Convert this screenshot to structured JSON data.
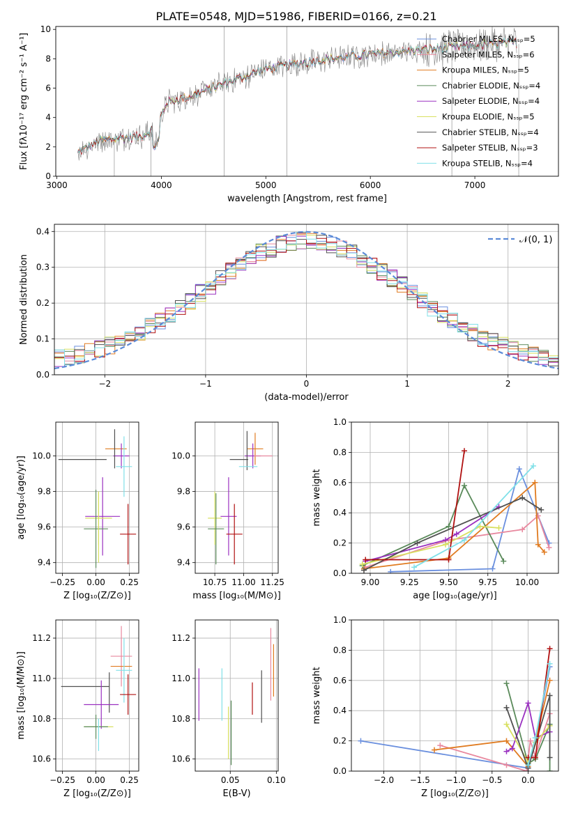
{
  "figure_title": "PLATE=0548, MJD=51986, FIBERID=0166, z=0.21",
  "colors": {
    "chabrier_miles": "#6a8fde",
    "salpeter_miles": "#e8889e",
    "kroupa_miles": "#e07b20",
    "chabrier_elodie": "#5a8a5a",
    "salpeter_elodie": "#9a30c0",
    "kroupa_elodie": "#d8e060",
    "chabrier_stelib": "#505050",
    "salpeter_stelib": "#b01010",
    "kroupa_stelib": "#80e0e8",
    "observed": "#808080",
    "normal": "#5b8bd8"
  },
  "chart_data": [
    {
      "id": "spectrum",
      "type": "line",
      "xlabel": "wavelength [Angstrom, rest frame]",
      "ylabel": "Flux [fλ10⁻¹⁷ erg cm⁻² s⁻¹ A⁻¹]",
      "xlim": [
        2990,
        7800
      ],
      "ylim": [
        0,
        10.2
      ],
      "xticks": [
        3000,
        4000,
        5000,
        6000,
        7000
      ],
      "yticks": [
        0,
        2,
        4,
        6,
        8,
        10
      ],
      "grid": false,
      "legend_position": "top-right",
      "legend": [
        {
          "label": "Chabrier MILES, Nₛₛₚ=5",
          "color_key": "chabrier_miles"
        },
        {
          "label": "Salpeter MILES, Nₛₛₚ=6",
          "color_key": "salpeter_miles"
        },
        {
          "label": "Kroupa MILES, Nₛₛₚ=5",
          "color_key": "kroupa_miles"
        },
        {
          "label": "Chabrier ELODIE, Nₛₛₚ=4",
          "color_key": "chabrier_elodie"
        },
        {
          "label": "Salpeter ELODIE, Nₛₛₚ=4",
          "color_key": "salpeter_elodie"
        },
        {
          "label": "Kroupa ELODIE, Nₛₛₚ=5",
          "color_key": "kroupa_elodie"
        },
        {
          "label": "Chabrier STELIB, Nₛₛₚ=4",
          "color_key": "chabrier_stelib"
        },
        {
          "label": "Salpeter STELIB, Nₛₛₚ=3",
          "color_key": "salpeter_stelib"
        },
        {
          "label": "Kroupa STELIB, Nₛₛₚ=4",
          "color_key": "kroupa_stelib"
        }
      ],
      "continuum": [
        [
          3200,
          1.6
        ],
        [
          3400,
          2.4
        ],
        [
          3600,
          2.6
        ],
        [
          3800,
          2.7
        ],
        [
          3950,
          3.3
        ],
        [
          4050,
          5.0
        ],
        [
          4300,
          5.5
        ],
        [
          4600,
          6.3
        ],
        [
          5000,
          7.3
        ],
        [
          5500,
          7.9
        ],
        [
          6000,
          8.3
        ],
        [
          6500,
          8.6
        ],
        [
          7000,
          8.9
        ],
        [
          7400,
          9.1
        ]
      ],
      "start_wavelength": 3200,
      "end_wavelength": 7400
    },
    {
      "id": "residuals",
      "type": "histogram",
      "xlabel": "(data-model)/error",
      "ylabel": "Normed distribution",
      "xlim": [
        -2.5,
        2.5
      ],
      "ylim": [
        0,
        0.42
      ],
      "xticks": [
        -2,
        -1,
        0,
        1,
        2
      ],
      "yticks": [
        0.0,
        0.1,
        0.2,
        0.3,
        0.4
      ],
      "grid": true,
      "legend_position": "top-right",
      "legend": [
        {
          "label": "𝒩(0, 1)",
          "color_key": "normal",
          "style": "dashed"
        }
      ],
      "bin_width": 0.1
    },
    {
      "id": "age_vs_Z",
      "type": "errorbar",
      "xlabel": "Z [log₁₀(Z/Z⊙)]",
      "ylabel": "age  [log₁₀(age/yr)]",
      "xlim": [
        -0.3,
        0.32
      ],
      "ylim": [
        9.34,
        10.19
      ],
      "xticks": [
        -0.25,
        0.0,
        0.25
      ],
      "xtick_labels": [
        "−0.25",
        "0.00",
        "0.25"
      ],
      "yticks": [
        9.4,
        9.6,
        9.8,
        10.0
      ],
      "yticks_labels": [
        "9.4",
        "9.6",
        "9.8",
        "10.0"
      ],
      "grid": true,
      "points": [
        {
          "c": "chabrier_stelib",
          "x": -0.1,
          "xerr": 0.18,
          "y": 9.98,
          "yerr": 0.0
        },
        {
          "c": "kroupa_miles",
          "x": 0.15,
          "xerr": 0.08,
          "y": 10.04,
          "yerr": 0.0
        },
        {
          "c": "salpeter_elodie",
          "x": 0.19,
          "xerr": 0.06,
          "y": 10.0,
          "yerr": 0.07
        },
        {
          "c": "chabrier_stelib",
          "x": 0.14,
          "xerr": 0.0,
          "y": 10.04,
          "yerr": 0.11
        },
        {
          "c": "kroupa_stelib",
          "x": 0.21,
          "xerr": 0.06,
          "y": 9.94,
          "yerr": 0.17
        },
        {
          "c": "salpeter_elodie",
          "x": 0.05,
          "xerr": 0.13,
          "y": 9.66,
          "yerr": 0.22
        },
        {
          "c": "kroupa_elodie",
          "x": 0.02,
          "xerr": 0.1,
          "y": 9.65,
          "yerr": 0.15
        },
        {
          "c": "chabrier_elodie",
          "x": 0.0,
          "xerr": 0.09,
          "y": 9.59,
          "yerr": 0.22
        },
        {
          "c": "kroupa_elodie",
          "x": 0.02,
          "xerr": 0.0,
          "y": 9.6,
          "yerr": 0.2
        },
        {
          "c": "salpeter_stelib",
          "x": 0.24,
          "xerr": 0.06,
          "y": 9.56,
          "yerr": 0.17
        }
      ]
    },
    {
      "id": "age_vs_mass",
      "type": "errorbar",
      "xlabel": "mass [log₁₀(M/M⊙)]",
      "ylabel": "",
      "xlim": [
        10.58,
        11.3
      ],
      "ylim": [
        9.34,
        10.19
      ],
      "xticks": [
        10.75,
        11.0,
        11.25
      ],
      "xtick_labels": [
        "10.75",
        "11.00",
        "11.25"
      ],
      "yticks": [
        9.4,
        9.6,
        9.8,
        10.0
      ],
      "yticks_labels": [
        "9.4",
        "9.6",
        "9.8",
        "10.0"
      ],
      "grid": true,
      "points": [
        {
          "c": "chabrier_stelib",
          "x": 10.96,
          "xerr": 0.08,
          "y": 9.98,
          "yerr": 0.0
        },
        {
          "c": "kroupa_miles",
          "x": 11.1,
          "xerr": 0.07,
          "y": 10.04,
          "yerr": 0.09
        },
        {
          "c": "salpeter_elodie",
          "x": 11.08,
          "xerr": 0.07,
          "y": 10.0,
          "yerr": 0.07
        },
        {
          "c": "chabrier_stelib",
          "x": 11.03,
          "xerr": 0.0,
          "y": 10.03,
          "yerr": 0.11
        },
        {
          "c": "kroupa_stelib",
          "x": 11.04,
          "xerr": 0.08,
          "y": 9.94,
          "yerr": 0.0
        },
        {
          "c": "salpeter_miles",
          "x": 11.17,
          "xerr": 0.08,
          "y": 10.0,
          "yerr": 0.0
        },
        {
          "c": "salpeter_elodie",
          "x": 10.87,
          "xerr": 0.07,
          "y": 9.66,
          "yerr": 0.22
        },
        {
          "c": "kroupa_elodie",
          "x": 10.75,
          "xerr": 0.06,
          "y": 9.65,
          "yerr": 0.15
        },
        {
          "c": "chabrier_elodie",
          "x": 10.76,
          "xerr": 0.07,
          "y": 9.59,
          "yerr": 0.2
        },
        {
          "c": "salpeter_stelib",
          "x": 10.92,
          "xerr": 0.07,
          "y": 9.56,
          "yerr": 0.17
        }
      ]
    },
    {
      "id": "weight_vs_age",
      "type": "line",
      "xlabel": "age  [log₁₀(age/yr)]",
      "ylabel": "mass weight",
      "xlim": [
        8.88,
        10.2
      ],
      "ylim": [
        0,
        1.0
      ],
      "xticks": [
        9.0,
        9.25,
        9.5,
        9.75,
        10.0
      ],
      "xtick_labels": [
        "9.00",
        "9.25",
        "9.50",
        "9.75",
        "10.00"
      ],
      "yticks": [
        0.0,
        0.2,
        0.4,
        0.6,
        0.8,
        1.0
      ],
      "yticks_labels": [
        "0.0",
        "0.2",
        "0.4",
        "0.6",
        "0.8",
        "1.0"
      ],
      "grid": true,
      "series": [
        {
          "c": "chabrier_miles",
          "x": [
            9.13,
            9.78,
            9.95,
            10.14
          ],
          "y": [
            0.01,
            0.03,
            0.69,
            0.2
          ]
        },
        {
          "c": "salpeter_miles",
          "x": [
            8.97,
            9.5,
            9.97,
            10.07,
            10.14
          ],
          "y": [
            0.04,
            0.22,
            0.29,
            0.38,
            0.17
          ]
        },
        {
          "c": "kroupa_miles",
          "x": [
            8.96,
            9.5,
            10.05,
            10.07,
            10.11
          ],
          "y": [
            0.03,
            0.1,
            0.6,
            0.19,
            0.14
          ]
        },
        {
          "c": "chabrier_elodie",
          "x": [
            8.95,
            9.5,
            9.6,
            9.85
          ],
          "y": [
            0.05,
            0.31,
            0.58,
            0.08
          ]
        },
        {
          "c": "salpeter_elodie",
          "x": [
            8.97,
            9.48,
            9.55,
            9.82
          ],
          "y": [
            0.08,
            0.22,
            0.26,
            0.44
          ]
        },
        {
          "c": "kroupa_elodie",
          "x": [
            8.95,
            9.48,
            9.7,
            9.82
          ],
          "y": [
            0.06,
            0.19,
            0.31,
            0.3
          ]
        },
        {
          "c": "chabrier_stelib",
          "x": [
            8.96,
            9.3,
            9.97,
            10.09
          ],
          "y": [
            0.02,
            0.2,
            0.5,
            0.42
          ]
        },
        {
          "c": "salpeter_stelib",
          "x": [
            8.97,
            9.5,
            9.6
          ],
          "y": [
            0.09,
            0.09,
            0.81
          ]
        },
        {
          "c": "kroupa_stelib",
          "x": [
            9.28,
            9.6,
            10.04
          ],
          "y": [
            0.04,
            0.22,
            0.71
          ]
        }
      ]
    },
    {
      "id": "mass_vs_Z",
      "type": "errorbar",
      "xlabel": "Z [log₁₀(Z/Z⊙)]",
      "ylabel": "mass [log₁₀(M/M⊙)]",
      "xlim": [
        -0.3,
        0.32
      ],
      "ylim": [
        10.54,
        11.29
      ],
      "xticks": [
        -0.25,
        0.0,
        0.25
      ],
      "xtick_labels": [
        "−0.25",
        "0.00",
        "0.25"
      ],
      "yticks": [
        10.6,
        10.8,
        11.0,
        11.2
      ],
      "yticks_labels": [
        "10.6",
        "10.8",
        "11.0",
        "11.2"
      ],
      "grid": true,
      "points": [
        {
          "c": "chabrier_stelib",
          "x": -0.08,
          "xerr": 0.18,
          "y": 10.96,
          "yerr": 0.0
        },
        {
          "c": "salpeter_miles",
          "x": 0.19,
          "xerr": 0.08,
          "y": 11.11,
          "yerr": 0.15
        },
        {
          "c": "kroupa_miles",
          "x": 0.19,
          "xerr": 0.08,
          "y": 11.06,
          "yerr": 0.0
        },
        {
          "c": "kroupa_stelib",
          "x": 0.21,
          "xerr": 0.06,
          "y": 11.04,
          "yerr": 0.16
        },
        {
          "c": "chabrier_stelib",
          "x": 0.1,
          "xerr": 0.0,
          "y": 10.93,
          "yerr": 0.1
        },
        {
          "c": "salpeter_stelib",
          "x": 0.24,
          "xerr": 0.06,
          "y": 10.92,
          "yerr": 0.1
        },
        {
          "c": "salpeter_elodie",
          "x": 0.04,
          "xerr": 0.13,
          "y": 10.87,
          "yerr": 0.12
        },
        {
          "c": "kroupa_elodie",
          "x": 0.02,
          "xerr": 0.11,
          "y": 10.76,
          "yerr": 0.0
        },
        {
          "c": "chabrier_elodie",
          "x": 0.0,
          "xerr": 0.09,
          "y": 10.76,
          "yerr": 0.06
        },
        {
          "c": "kroupa_stelib",
          "x": 0.02,
          "xerr": 0.0,
          "y": 10.72,
          "yerr": 0.08
        }
      ]
    },
    {
      "id": "mass_vs_EBV",
      "type": "errorbar",
      "xlabel": "E(B-V)",
      "ylabel": "",
      "xlim": [
        0.012,
        0.102
      ],
      "ylim": [
        10.54,
        11.29
      ],
      "xticks": [
        0.05,
        0.1
      ],
      "xtick_labels": [
        "0.05",
        "0.10"
      ],
      "yticks": [
        10.6,
        10.8,
        11.0,
        11.2
      ],
      "yticks_labels": [
        "10.6",
        "10.8",
        "11.0",
        "11.2"
      ],
      "grid": true,
      "points": [
        {
          "c": "salpeter_elodie",
          "x": 0.016,
          "xerr": 0.0,
          "y": 10.92,
          "yerr": 0.13
        },
        {
          "c": "kroupa_stelib",
          "x": 0.041,
          "xerr": 0.0,
          "y": 10.92,
          "yerr": 0.13
        },
        {
          "c": "kroupa_elodie",
          "x": 0.048,
          "xerr": 0.0,
          "y": 10.73,
          "yerr": 0.13
        },
        {
          "c": "chabrier_elodie",
          "x": 0.051,
          "xerr": 0.0,
          "y": 10.73,
          "yerr": 0.16
        },
        {
          "c": "salpeter_stelib",
          "x": 0.074,
          "xerr": 0.0,
          "y": 10.9,
          "yerr": 0.08
        },
        {
          "c": "chabrier_stelib",
          "x": 0.084,
          "xerr": 0.0,
          "y": 10.91,
          "yerr": 0.13
        },
        {
          "c": "salpeter_miles",
          "x": 0.094,
          "xerr": 0.0,
          "y": 11.07,
          "yerr": 0.18
        },
        {
          "c": "kroupa_miles",
          "x": 0.097,
          "xerr": 0.0,
          "y": 11.04,
          "yerr": 0.13
        }
      ]
    },
    {
      "id": "weight_vs_Z",
      "type": "line",
      "xlabel": "Z [log₁₀(Z/Z⊙)]",
      "ylabel": "mass weight",
      "xlim": [
        -2.45,
        0.42
      ],
      "ylim": [
        0,
        1.0
      ],
      "xticks": [
        -2.0,
        -1.5,
        -1.0,
        -0.5,
        0.0
      ],
      "xtick_labels": [
        "−2.0",
        "−1.5",
        "−1.0",
        "−0.5",
        "0.0"
      ],
      "yticks": [
        0.0,
        0.2,
        0.4,
        0.6,
        0.8,
        1.0
      ],
      "yticks_labels": [
        "0.0",
        "0.2",
        "0.4",
        "0.6",
        "0.8",
        "1.0"
      ],
      "grid": true,
      "series": [
        {
          "c": "chabrier_miles",
          "x": [
            -2.32,
            0.0,
            0.1,
            0.3
          ],
          "y": [
            0.2,
            0.02,
            0.19,
            0.69
          ]
        },
        {
          "c": "salpeter_miles",
          "x": [
            -1.22,
            -0.3,
            -0.02,
            0.03,
            0.1,
            0.3
          ],
          "y": [
            0.17,
            0.04,
            0.0,
            0.2,
            0.1,
            0.38
          ]
        },
        {
          "c": "kroupa_miles",
          "x": [
            -1.3,
            -0.3,
            0.0,
            0.1,
            0.3
          ],
          "y": [
            0.14,
            0.2,
            0.03,
            0.19,
            0.6
          ]
        },
        {
          "c": "chabrier_elodie",
          "x": [
            -0.3,
            0.0,
            0.1,
            0.3,
            0.3
          ],
          "y": [
            0.58,
            0.05,
            0.08,
            0.31,
            0.0
          ]
        },
        {
          "c": "salpeter_elodie",
          "x": [
            -0.3,
            -0.22,
            0.0,
            0.1,
            0.3
          ],
          "y": [
            0.13,
            0.15,
            0.45,
            0.22,
            0.26
          ]
        },
        {
          "c": "kroupa_elodie",
          "x": [
            -0.3,
            0.0,
            0.1,
            0.3
          ],
          "y": [
            0.31,
            0.06,
            0.19,
            0.3
          ]
        },
        {
          "c": "chabrier_stelib",
          "x": [
            -0.3,
            0.0,
            0.3,
            0.3
          ],
          "y": [
            0.42,
            0.02,
            0.5,
            0.09
          ]
        },
        {
          "c": "salpeter_stelib",
          "x": [
            0.0,
            0.1,
            0.3
          ],
          "y": [
            0.09,
            0.09,
            0.81
          ]
        },
        {
          "c": "kroupa_stelib",
          "x": [
            0.0,
            0.1,
            0.3
          ],
          "y": [
            0.04,
            0.22,
            0.71
          ]
        }
      ]
    }
  ]
}
